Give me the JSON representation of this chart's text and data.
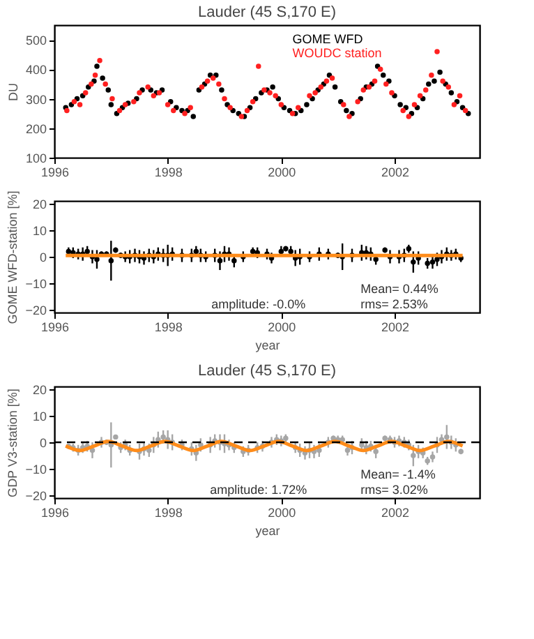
{
  "chart_data": [
    {
      "type": "scatter",
      "title": "Lauder  (45 S,170 E)",
      "ylabel": "DU",
      "xlim": [
        1996,
        2003.5
      ],
      "xticks": [
        1996,
        1998,
        2000,
        2002
      ],
      "ylim": [
        100,
        550
      ],
      "yticks": [
        100,
        200,
        300,
        400,
        500
      ],
      "legend": "top right",
      "series": [
        {
          "name": "GOME WFD",
          "color": "#000000",
          "marker": "circle",
          "x": [
            1996.2,
            1996.3,
            1996.4,
            1996.5,
            1996.6,
            1996.7,
            1996.75,
            1996.85,
            1996.95,
            1997.0,
            1997.1,
            1997.2,
            1997.3,
            1997.45,
            1997.55,
            1997.7,
            1997.8,
            1997.9,
            1998.05,
            1998.15,
            1998.25,
            1998.35,
            1998.45,
            1998.55,
            1998.65,
            1998.75,
            1998.85,
            1998.95,
            1999.05,
            1999.15,
            1999.25,
            1999.35,
            1999.45,
            1999.55,
            1999.65,
            1999.75,
            1999.85,
            1999.95,
            2000.05,
            2000.15,
            2000.25,
            2000.35,
            2000.45,
            2000.55,
            2000.65,
            2000.75,
            2000.85,
            2000.95,
            2001.05,
            2001.15,
            2001.25,
            2001.4,
            2001.5,
            2001.6,
            2001.7,
            2001.8,
            2001.9,
            2002.0,
            2002.1,
            2002.2,
            2002.3,
            2002.4,
            2002.5,
            2002.6,
            2002.7,
            2002.8,
            2002.9,
            2003.0,
            2003.1,
            2003.2,
            2003.3
          ],
          "values": [
            270,
            280,
            300,
            310,
            340,
            360,
            410,
            370,
            330,
            280,
            250,
            270,
            285,
            300,
            330,
            330,
            320,
            330,
            290,
            270,
            260,
            260,
            240,
            330,
            350,
            380,
            380,
            330,
            280,
            260,
            250,
            240,
            270,
            300,
            320,
            330,
            340,
            300,
            270,
            260,
            250,
            260,
            280,
            300,
            330,
            350,
            380,
            340,
            290,
            260,
            250,
            300,
            340,
            350,
            410,
            380,
            360,
            310,
            280,
            270,
            250,
            270,
            300,
            350,
            360,
            390,
            350,
            320,
            290,
            270,
            250
          ]
        },
        {
          "name": "WOUDC station",
          "color": "#ff2020",
          "marker": "circle",
          "x": [
            1996.22,
            1996.35,
            1996.45,
            1996.55,
            1996.65,
            1996.72,
            1996.8,
            1996.9,
            1997.02,
            1997.15,
            1997.25,
            1997.4,
            1997.5,
            1997.65,
            1997.75,
            1997.85,
            1998.0,
            1998.1,
            1998.3,
            1998.4,
            1998.6,
            1998.7,
            1998.8,
            1998.9,
            1999.0,
            1999.1,
            1999.3,
            1999.4,
            1999.5,
            1999.6,
            1999.7,
            1999.8,
            1999.9,
            2000.0,
            2000.2,
            2000.3,
            2000.5,
            2000.6,
            2000.7,
            2000.8,
            2000.9,
            2001.1,
            2001.2,
            2001.35,
            2001.45,
            2001.55,
            2001.65,
            2001.75,
            2001.85,
            2001.95,
            2002.15,
            2002.25,
            2002.35,
            2002.45,
            2002.55,
            2002.65,
            2002.75,
            2002.85,
            2002.95,
            2003.05,
            2003.15,
            2003.25
          ],
          "values": [
            260,
            290,
            280,
            320,
            350,
            380,
            430,
            350,
            300,
            260,
            280,
            290,
            320,
            340,
            310,
            320,
            280,
            260,
            250,
            270,
            340,
            360,
            370,
            350,
            300,
            270,
            240,
            260,
            290,
            410,
            330,
            320,
            310,
            280,
            250,
            270,
            310,
            320,
            340,
            360,
            370,
            280,
            240,
            290,
            330,
            340,
            360,
            400,
            350,
            320,
            260,
            240,
            280,
            310,
            330,
            380,
            460,
            360,
            340,
            280,
            310,
            260
          ]
        }
      ]
    },
    {
      "type": "scatter",
      "xlabel": "year",
      "ylabel": "GOME WFD-station [%]",
      "xlim": [
        1996,
        2003.5
      ],
      "xticks": [
        1996,
        1998,
        2000,
        2002
      ],
      "ylim": [
        -21,
        21
      ],
      "yticks": [
        -20,
        -10,
        0,
        10,
        20
      ],
      "annotations": [
        "amplitude: -0.0%",
        "Mean= 0.44%",
        "rms= 2.53%"
      ],
      "series": [
        {
          "color": "#000000",
          "marker": "circle",
          "x": [
            1996.25,
            1996.33,
            1996.42,
            1996.5,
            1996.58,
            1996.67,
            1996.75,
            1996.83,
            1996.92,
            1997.0,
            1997.08,
            1997.17,
            1997.25,
            1997.33,
            1997.42,
            1997.5,
            1997.58,
            1997.67,
            1997.75,
            1997.83,
            1997.92,
            1998.0,
            1998.08,
            1998.25,
            1998.42,
            1998.5,
            1998.58,
            1998.67,
            1998.83,
            1998.92,
            1999.0,
            1999.08,
            1999.17,
            1999.33,
            1999.5,
            1999.58,
            1999.75,
            1999.83,
            2000.0,
            2000.08,
            2000.17,
            2000.25,
            2000.33,
            2000.5,
            2000.67,
            2000.83,
            2001.0,
            2001.08,
            2001.25,
            2001.42,
            2001.5,
            2001.58,
            2001.67,
            2001.83,
            2001.92,
            2002.08,
            2002.17,
            2002.25,
            2002.33,
            2002.42,
            2002.58,
            2002.67,
            2002.75,
            2002.83,
            2002.92,
            2003.0,
            2003.08,
            2003.17
          ],
          "values": [
            2,
            1.5,
            1,
            1,
            2,
            0,
            -1,
            1,
            1,
            -1.5,
            2.5,
            0.5,
            0,
            0,
            0.5,
            0,
            -0.5,
            0.5,
            0,
            1,
            0.5,
            0.5,
            1,
            0.5,
            0.5,
            2,
            0.5,
            0,
            0.5,
            -1.5,
            1,
            1,
            -1.5,
            0,
            2,
            1.5,
            1,
            -0.5,
            2,
            3,
            2,
            -0.5,
            0,
            0,
            1,
            1,
            0.5,
            0,
            0.5,
            1.5,
            1.5,
            1,
            -1,
            2.5,
            0,
            0,
            0.5,
            3,
            -2,
            -0.5,
            -2.5,
            -2,
            -1,
            0,
            1,
            0.5,
            1,
            -0.5
          ],
          "errors": [
            1.5,
            2,
            2,
            2.5,
            2,
            2.5,
            3.5,
            1,
            1,
            7.5,
            1,
            1,
            2,
            2.5,
            2.5,
            2.5,
            2.5,
            2.5,
            2.5,
            2.5,
            2.5,
            4,
            2.5,
            2.5,
            2.5,
            2,
            2.5,
            2,
            2.5,
            3.5,
            3,
            2.5,
            2.5,
            2,
            1.5,
            2,
            2,
            2,
            2,
            1,
            2,
            3,
            3,
            2,
            2.5,
            2,
            1,
            5,
            2.5,
            3,
            2.5,
            2.5,
            2,
            1,
            2.5,
            2.5,
            2.5,
            1.5,
            4,
            2.5,
            2,
            2.5,
            2.5,
            2.5,
            2.5,
            2,
            2,
            1.5
          ]
        },
        {
          "type": "line",
          "color": "#ff8c1a",
          "x": [
            1996.2,
            2003.2
          ],
          "values": [
            0.44,
            0.44
          ]
        }
      ]
    },
    {
      "type": "scatter",
      "title": "Lauder  (45 S,170 E)",
      "xlabel": "year",
      "ylabel": "GDP V3-station [%]",
      "xlim": [
        1996,
        2003.5
      ],
      "xticks": [
        1996,
        1998,
        2000,
        2002
      ],
      "ylim": [
        -21,
        21
      ],
      "yticks": [
        -20,
        -10,
        0,
        10,
        20
      ],
      "annotations": [
        "amplitude: 1.72%",
        "Mean= -1.4%",
        "rms= 3.02%"
      ],
      "ref_lines": [
        {
          "axis": "y",
          "value": 0,
          "color": "#000000",
          "line_style": "dashed"
        }
      ],
      "series": [
        {
          "color": "#a6a6a6",
          "marker": "circle",
          "x": [
            1996.25,
            1996.33,
            1996.42,
            1996.5,
            1996.58,
            1996.67,
            1996.83,
            1996.92,
            1997.0,
            1997.08,
            1997.17,
            1997.25,
            1997.33,
            1997.5,
            1997.58,
            1997.67,
            1997.75,
            1997.83,
            1997.92,
            1998.0,
            1998.08,
            1998.25,
            1998.42,
            1998.5,
            1998.58,
            1998.75,
            1998.83,
            1998.92,
            1999.0,
            1999.08,
            1999.17,
            1999.33,
            1999.42,
            1999.58,
            1999.67,
            1999.83,
            1999.92,
            2000.0,
            2000.08,
            2000.25,
            2000.33,
            2000.42,
            2000.5,
            2000.58,
            2000.67,
            2000.83,
            2000.92,
            2001.0,
            2001.08,
            2001.17,
            2001.25,
            2001.42,
            2001.5,
            2001.58,
            2001.67,
            2001.83,
            2001.92,
            2002.0,
            2002.08,
            2002.17,
            2002.25,
            2002.33,
            2002.42,
            2002.5,
            2002.58,
            2002.67,
            2002.75,
            2002.83,
            2002.92,
            2003.0,
            2003.08,
            2003.17
          ],
          "values": [
            -1.5,
            -2,
            -3,
            -2,
            -1.5,
            -3,
            0,
            0,
            -1,
            2,
            -2,
            -1,
            -3,
            -3.5,
            -2.5,
            -3,
            -1,
            1,
            2,
            1,
            0,
            -1,
            -2.5,
            -4,
            -1,
            -1,
            0.5,
            0,
            -0.5,
            -1,
            -2,
            -3.5,
            -3,
            -2,
            -1.5,
            0,
            1,
            0.5,
            1.5,
            -2,
            -3,
            -4,
            -3,
            -3.5,
            -3,
            0,
            1.5,
            1,
            1,
            -3,
            -2,
            -1,
            -2,
            -1.5,
            -3.5,
            1.5,
            1,
            0,
            0.5,
            0,
            -1,
            -5,
            -3.5,
            -4,
            -7,
            -5.5,
            -1,
            1,
            2,
            0,
            -1,
            -3.5
          ],
          "errors": [
            1,
            1.5,
            2,
            2,
            2,
            3,
            2,
            1,
            8.5,
            0.5,
            2,
            2,
            2,
            3,
            2.5,
            2.5,
            3,
            3,
            2.5,
            3.5,
            3,
            2,
            2.5,
            3,
            2.5,
            3,
            2.5,
            3,
            3.5,
            2,
            2,
            2,
            2,
            2,
            2,
            2,
            2,
            2,
            1.5,
            2,
            2.5,
            2.5,
            3,
            2.5,
            2.5,
            2,
            1,
            1.5,
            1.5,
            2,
            2.5,
            2.5,
            2.5,
            2,
            2.5,
            1,
            1.5,
            2,
            2,
            2,
            2,
            4,
            2.5,
            2,
            1.5,
            2,
            3,
            2,
            4.5,
            2.5,
            2.5,
            1
          ]
        },
        {
          "type": "line",
          "color": "#ff8c1a",
          "x": [
            1996.2,
            1996.45,
            1996.7,
            1996.95,
            1997.2,
            1997.45,
            1997.7,
            1997.95,
            1998.2,
            1998.45,
            1998.7,
            1998.95,
            1999.2,
            1999.45,
            1999.7,
            1999.95,
            2000.2,
            2000.45,
            2000.7,
            2000.95,
            2001.2,
            2001.45,
            2001.7,
            2001.95,
            2002.2,
            2002.45,
            2002.7,
            2002.95,
            2003.2
          ],
          "values": [
            -1.4,
            -3.1,
            -1.4,
            0.3,
            -1.4,
            -3.1,
            -1.4,
            0.3,
            -1.4,
            -3.1,
            -1.4,
            0.3,
            -1.4,
            -3.1,
            -1.4,
            0.3,
            -1.4,
            -3.1,
            -1.4,
            0.3,
            -1.4,
            -3.1,
            -1.4,
            0.3,
            -1.4,
            -3.1,
            -1.4,
            0.3,
            -1.4
          ]
        }
      ]
    }
  ]
}
